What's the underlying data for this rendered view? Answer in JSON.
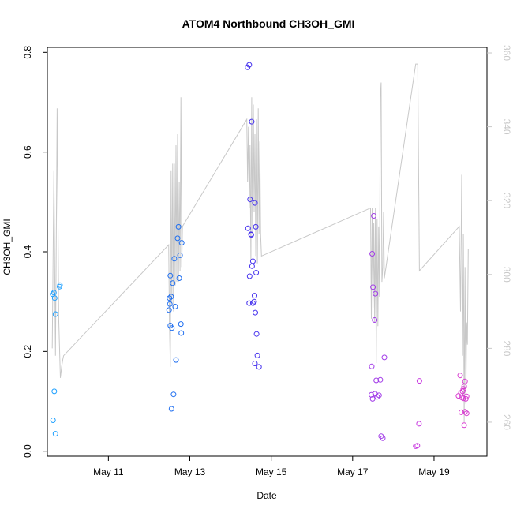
{
  "chart_data": {
    "type": "scatter",
    "title": "ATOM4 Northbound CH3OH_GMI",
    "xlabel": "Date",
    "ylabel": "CH3OH_GMI",
    "x_ticks": [
      {
        "value": 11.0,
        "label": "May 11"
      },
      {
        "value": 13.0,
        "label": "May 13"
      },
      {
        "value": 15.0,
        "label": "May 15"
      },
      {
        "value": 17.0,
        "label": "May 17"
      },
      {
        "value": 19.0,
        "label": "May 19"
      }
    ],
    "xlim": [
      9.5,
      20.3
    ],
    "ylim": [
      -0.01,
      0.81
    ],
    "y_ticks": [
      0.0,
      0.2,
      0.4,
      0.6,
      0.8
    ],
    "y2lim": [
      250.8,
      361.5
    ],
    "y2_ticks": [
      260,
      280,
      300,
      320,
      340,
      360
    ],
    "grid": false,
    "colors": {
      "series_line": "#c8c8c8",
      "axis": "#000000",
      "right_axis": "#c8c8c8"
    },
    "points": [
      {
        "x": 9.63,
        "y": 0.315,
        "color": "#1ea0ff"
      },
      {
        "x": 9.66,
        "y": 0.318,
        "color": "#1ea0ff"
      },
      {
        "x": 9.68,
        "y": 0.307,
        "color": "#1ea0ff"
      },
      {
        "x": 9.7,
        "y": 0.275,
        "color": "#1ea0ff"
      },
      {
        "x": 9.67,
        "y": 0.12,
        "color": "#1ea0ff"
      },
      {
        "x": 9.64,
        "y": 0.062,
        "color": "#1ea0ff"
      },
      {
        "x": 9.7,
        "y": 0.035,
        "color": "#1ea0ff"
      },
      {
        "x": 9.8,
        "y": 0.33,
        "color": "#1ea0ff"
      },
      {
        "x": 9.81,
        "y": 0.333,
        "color": "#1ea0ff"
      },
      {
        "x": 12.5,
        "y": 0.307,
        "color": "#1e6ef0"
      },
      {
        "x": 12.52,
        "y": 0.352,
        "color": "#1e6ef0"
      },
      {
        "x": 12.54,
        "y": 0.31,
        "color": "#1e6ef0"
      },
      {
        "x": 12.51,
        "y": 0.295,
        "color": "#1e6ef0"
      },
      {
        "x": 12.49,
        "y": 0.283,
        "color": "#1e6ef0"
      },
      {
        "x": 12.52,
        "y": 0.252,
        "color": "#1e6ef0"
      },
      {
        "x": 12.56,
        "y": 0.247,
        "color": "#1e6ef0"
      },
      {
        "x": 12.58,
        "y": 0.337,
        "color": "#1e6ef0"
      },
      {
        "x": 12.62,
        "y": 0.386,
        "color": "#1e6ef0"
      },
      {
        "x": 12.64,
        "y": 0.29,
        "color": "#1e6ef0"
      },
      {
        "x": 12.66,
        "y": 0.183,
        "color": "#1e6ef0"
      },
      {
        "x": 12.6,
        "y": 0.114,
        "color": "#1e6ef0"
      },
      {
        "x": 12.55,
        "y": 0.085,
        "color": "#1e6ef0"
      },
      {
        "x": 12.7,
        "y": 0.427,
        "color": "#1e6ef0"
      },
      {
        "x": 12.72,
        "y": 0.45,
        "color": "#1e6ef0"
      },
      {
        "x": 12.74,
        "y": 0.347,
        "color": "#1e6ef0"
      },
      {
        "x": 12.76,
        "y": 0.393,
        "color": "#1e6ef0"
      },
      {
        "x": 12.8,
        "y": 0.418,
        "color": "#1e6ef0"
      },
      {
        "x": 12.78,
        "y": 0.255,
        "color": "#1e6ef0"
      },
      {
        "x": 12.79,
        "y": 0.237,
        "color": "#1e6ef0"
      },
      {
        "x": 14.42,
        "y": 0.77,
        "color": "#4632ee"
      },
      {
        "x": 14.46,
        "y": 0.775,
        "color": "#4632ee"
      },
      {
        "x": 14.52,
        "y": 0.661,
        "color": "#4632ee"
      },
      {
        "x": 14.48,
        "y": 0.505,
        "color": "#4632ee"
      },
      {
        "x": 14.6,
        "y": 0.498,
        "color": "#4632ee"
      },
      {
        "x": 14.43,
        "y": 0.447,
        "color": "#4632ee"
      },
      {
        "x": 14.62,
        "y": 0.45,
        "color": "#4632ee"
      },
      {
        "x": 14.5,
        "y": 0.435,
        "color": "#4632ee"
      },
      {
        "x": 14.51,
        "y": 0.434,
        "color": "#4632ee"
      },
      {
        "x": 14.55,
        "y": 0.381,
        "color": "#4632ee"
      },
      {
        "x": 14.53,
        "y": 0.371,
        "color": "#4632ee"
      },
      {
        "x": 14.47,
        "y": 0.351,
        "color": "#4632ee"
      },
      {
        "x": 14.63,
        "y": 0.358,
        "color": "#4632ee"
      },
      {
        "x": 14.59,
        "y": 0.312,
        "color": "#4632ee"
      },
      {
        "x": 14.46,
        "y": 0.297,
        "color": "#4632ee"
      },
      {
        "x": 14.55,
        "y": 0.297,
        "color": "#4632ee"
      },
      {
        "x": 14.58,
        "y": 0.3,
        "color": "#4632ee"
      },
      {
        "x": 14.61,
        "y": 0.278,
        "color": "#4632ee"
      },
      {
        "x": 14.64,
        "y": 0.235,
        "color": "#4632ee"
      },
      {
        "x": 14.66,
        "y": 0.192,
        "color": "#4632ee"
      },
      {
        "x": 14.6,
        "y": 0.176,
        "color": "#4632ee"
      },
      {
        "x": 14.7,
        "y": 0.169,
        "color": "#4632ee"
      },
      {
        "x": 17.48,
        "y": 0.396,
        "color": "#a23ce8"
      },
      {
        "x": 17.52,
        "y": 0.472,
        "color": "#a23ce8"
      },
      {
        "x": 17.5,
        "y": 0.329,
        "color": "#a23ce8"
      },
      {
        "x": 17.56,
        "y": 0.316,
        "color": "#a23ce8"
      },
      {
        "x": 17.54,
        "y": 0.263,
        "color": "#a23ce8"
      },
      {
        "x": 17.47,
        "y": 0.17,
        "color": "#a23ce8"
      },
      {
        "x": 17.58,
        "y": 0.142,
        "color": "#a23ce8"
      },
      {
        "x": 17.68,
        "y": 0.143,
        "color": "#a23ce8"
      },
      {
        "x": 17.46,
        "y": 0.113,
        "color": "#a23ce8"
      },
      {
        "x": 17.49,
        "y": 0.105,
        "color": "#a23ce8"
      },
      {
        "x": 17.55,
        "y": 0.115,
        "color": "#a23ce8"
      },
      {
        "x": 17.6,
        "y": 0.109,
        "color": "#a23ce8"
      },
      {
        "x": 17.65,
        "y": 0.112,
        "color": "#a23ce8"
      },
      {
        "x": 17.7,
        "y": 0.03,
        "color": "#a23ce8"
      },
      {
        "x": 17.74,
        "y": 0.026,
        "color": "#a23ce8"
      },
      {
        "x": 17.78,
        "y": 0.188,
        "color": "#a23ce8"
      },
      {
        "x": 18.55,
        "y": 0.01,
        "color": "#c838e0"
      },
      {
        "x": 18.59,
        "y": 0.011,
        "color": "#c838e0"
      },
      {
        "x": 18.63,
        "y": 0.055,
        "color": "#c838e0"
      },
      {
        "x": 18.64,
        "y": 0.141,
        "color": "#c838e0"
      },
      {
        "x": 19.64,
        "y": 0.152,
        "color": "#d83cd0"
      },
      {
        "x": 19.66,
        "y": 0.117,
        "color": "#d83cd0"
      },
      {
        "x": 19.6,
        "y": 0.111,
        "color": "#d83cd0"
      },
      {
        "x": 19.7,
        "y": 0.12,
        "color": "#d83cd0"
      },
      {
        "x": 19.72,
        "y": 0.125,
        "color": "#d83cd0"
      },
      {
        "x": 19.74,
        "y": 0.13,
        "color": "#d83cd0"
      },
      {
        "x": 19.76,
        "y": 0.14,
        "color": "#d83cd0"
      },
      {
        "x": 19.68,
        "y": 0.108,
        "color": "#d83cd0"
      },
      {
        "x": 19.72,
        "y": 0.106,
        "color": "#d83cd0"
      },
      {
        "x": 19.78,
        "y": 0.105,
        "color": "#d83cd0"
      },
      {
        "x": 19.8,
        "y": 0.11,
        "color": "#d83cd0"
      },
      {
        "x": 19.67,
        "y": 0.078,
        "color": "#d83cd0"
      },
      {
        "x": 19.76,
        "y": 0.079,
        "color": "#d83cd0"
      },
      {
        "x": 19.8,
        "y": 0.076,
        "color": "#d83cd0"
      },
      {
        "x": 19.74,
        "y": 0.052,
        "color": "#d83cd0"
      }
    ],
    "line_series": {
      "axis": "right",
      "color": "#c8c8c8",
      "x": [
        9.62,
        9.66,
        9.7,
        9.74,
        9.78,
        9.82,
        9.85,
        9.88,
        9.9,
        12.48,
        12.5,
        12.52,
        12.54,
        12.56,
        12.58,
        12.6,
        12.62,
        12.64,
        12.66,
        12.68,
        12.7,
        12.72,
        12.74,
        12.76,
        12.78,
        12.8,
        12.82,
        14.4,
        14.42,
        14.44,
        14.46,
        14.48,
        14.5,
        14.52,
        14.54,
        14.56,
        14.58,
        14.6,
        14.62,
        14.64,
        14.66,
        14.68,
        14.7,
        14.72,
        14.74,
        14.76,
        17.44,
        17.46,
        17.48,
        17.5,
        17.52,
        17.54,
        17.56,
        17.58,
        17.6,
        17.62,
        17.64,
        17.66,
        17.68,
        17.7,
        17.72,
        17.74,
        17.76,
        17.78,
        18.55,
        18.6,
        18.64,
        19.62,
        19.65,
        19.68,
        19.7,
        19.72,
        19.74,
        19.76,
        19.78,
        19.8,
        19.82,
        19.84
      ],
      "y": [
        280,
        328,
        278,
        345,
        288,
        272,
        275,
        277,
        278,
        308,
        287,
        275,
        328,
        292,
        330,
        290,
        330,
        297,
        335,
        298,
        338,
        298,
        325,
        301,
        348,
        302,
        313,
        342,
        325,
        340,
        318,
        335,
        304,
        348,
        311,
        346,
        317,
        338,
        305,
        342,
        303,
        345,
        311,
        336,
        311,
        305,
        318,
        288,
        318,
        291,
        314,
        287,
        318,
        276,
        315,
        286,
        313,
        294,
        348,
        352,
        298,
        302,
        317,
        299,
        357,
        357,
        301,
        313,
        290,
        327,
        278,
        311,
        260,
        302,
        265,
        287,
        281,
        307
      ]
    }
  }
}
